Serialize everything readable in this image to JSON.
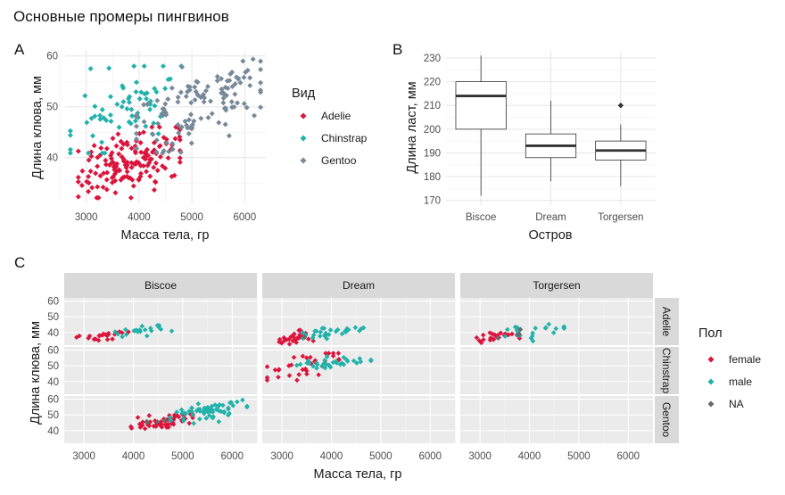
{
  "title": "Основные промеры пингвинов",
  "tags": [
    "A",
    "B",
    "C"
  ],
  "palette": {
    "Adelie": "#DC143C",
    "Chinstrap": "#20B2AA",
    "Gentoo": "#778899",
    "female": "#DC143C",
    "male": "#20B2AA",
    "NA": "#696969"
  },
  "chart_data": [
    {
      "id": "A",
      "type": "scatter",
      "xlabel": "Масса тела, гр",
      "ylabel": "Длина клюва, мм",
      "xlim": [
        2600,
        6400
      ],
      "ylim": [
        31,
        61
      ],
      "xticks": [
        3000,
        4000,
        5000,
        6000
      ],
      "yticks": [
        40,
        50,
        60
      ],
      "grid": true,
      "legend": {
        "title": "Вид",
        "position": "right",
        "entries": [
          "Adelie",
          "Chinstrap",
          "Gentoo"
        ]
      },
      "series": [
        {
          "name": "Adelie",
          "n": 151,
          "x_range": [
            2850,
            4775
          ],
          "y_range": [
            32.1,
            46.0
          ],
          "center": [
            3700,
            38.8
          ]
        },
        {
          "name": "Chinstrap",
          "n": 68,
          "x_range": [
            2700,
            4800
          ],
          "y_range": [
            40.9,
            58.0
          ],
          "center": [
            3733,
            48.8
          ]
        },
        {
          "name": "Gentoo",
          "n": 123,
          "x_range": [
            3950,
            6300
          ],
          "y_range": [
            40.9,
            59.6
          ],
          "center": [
            5076,
            47.5
          ]
        }
      ]
    },
    {
      "id": "B",
      "type": "box",
      "xlabel": "Остров",
      "ylabel": "Длина ласт, мм",
      "categories": [
        "Biscoe",
        "Dream",
        "Torgersen"
      ],
      "ylim": [
        168,
        233
      ],
      "yticks": [
        170,
        180,
        190,
        200,
        210,
        220,
        230
      ],
      "grid": true,
      "boxes": [
        {
          "category": "Biscoe",
          "min": 172,
          "q1": 200,
          "median": 214,
          "q3": 220,
          "max": 231,
          "outliers": []
        },
        {
          "category": "Dream",
          "min": 178,
          "q1": 188,
          "median": 193,
          "q3": 198,
          "max": 212,
          "outliers": []
        },
        {
          "category": "Torgersen",
          "min": 176,
          "q1": 187,
          "median": 191,
          "q3": 195,
          "max": 202,
          "outliers": [
            210
          ]
        }
      ]
    },
    {
      "id": "C",
      "type": "scatter",
      "xlabel": "Масса тела, гр",
      "ylabel": "Длина клюва, мм",
      "xlim": [
        2600,
        6500
      ],
      "ylim": [
        32,
        62
      ],
      "xticks": [
        3000,
        4000,
        5000,
        6000
      ],
      "yticks": [
        40,
        50,
        60
      ],
      "grid": true,
      "facet_cols": [
        "Biscoe",
        "Dream",
        "Torgersen"
      ],
      "facet_rows": [
        "Adelie",
        "Chinstrap",
        "Gentoo"
      ],
      "legend": {
        "title": "Пол",
        "position": "right",
        "entries": [
          "female",
          "male",
          "NA"
        ]
      },
      "panels": [
        {
          "col": "Biscoe",
          "row": "Adelie",
          "groups": [
            {
              "sex": "female",
              "n": 22,
              "x_range": [
                2850,
                3900
              ],
              "y_range": [
                34.5,
                40.5
              ]
            },
            {
              "sex": "male",
              "n": 22,
              "x_range": [
                3550,
                4775
              ],
              "y_range": [
                37.0,
                45.6
              ]
            }
          ]
        },
        {
          "col": "Dream",
          "row": "Adelie",
          "groups": [
            {
              "sex": "female",
              "n": 27,
              "x_range": [
                2900,
                3700
              ],
              "y_range": [
                32.1,
                41.5
              ]
            },
            {
              "sex": "male",
              "n": 28,
              "x_range": [
                3425,
                4650
              ],
              "y_range": [
                36.0,
                44.1
              ]
            },
            {
              "sex": "NA",
              "n": 1,
              "x_range": [
                3450,
                3500
              ],
              "y_range": [
                36.9,
                37.1
              ]
            }
          ]
        },
        {
          "col": "Torgersen",
          "row": "Adelie",
          "groups": [
            {
              "sex": "female",
              "n": 24,
              "x_range": [
                2900,
                3800
              ],
              "y_range": [
                33.5,
                41.1
              ]
            },
            {
              "sex": "male",
              "n": 23,
              "x_range": [
                3325,
                4700
              ],
              "y_range": [
                34.6,
                46.0
              ]
            },
            {
              "sex": "NA",
              "n": 4,
              "x_range": [
                3300,
                4250
              ],
              "y_range": [
                34.1,
                42.0
              ]
            }
          ]
        },
        {
          "col": "Dream",
          "row": "Chinstrap",
          "groups": [
            {
              "sex": "female",
              "n": 34,
              "x_range": [
                2700,
                4150
              ],
              "y_range": [
                40.9,
                58.0
              ]
            },
            {
              "sex": "male",
              "n": 34,
              "x_range": [
                3250,
                4800
              ],
              "y_range": [
                48.5,
                55.8
              ]
            }
          ]
        },
        {
          "col": "Biscoe",
          "row": "Gentoo",
          "groups": [
            {
              "sex": "female",
              "n": 58,
              "x_range": [
                3950,
                5200
              ],
              "y_range": [
                40.9,
                50.5
              ]
            },
            {
              "sex": "male",
              "n": 61,
              "x_range": [
                4750,
                6300
              ],
              "y_range": [
                44.4,
                59.6
              ]
            },
            {
              "sex": "NA",
              "n": 4,
              "x_range": [
                4100,
                4875
              ],
              "y_range": [
                44.5,
                47.3
              ]
            }
          ]
        }
      ]
    }
  ]
}
